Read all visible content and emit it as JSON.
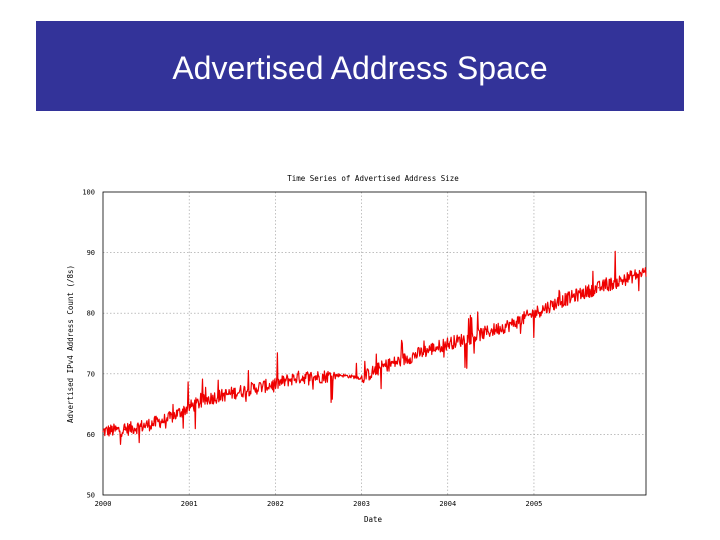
{
  "slide": {
    "title": "Advertised Address Space"
  },
  "chart_data": {
    "type": "line",
    "title": "Time Series of Advertised Address Size",
    "xlabel": "Date",
    "ylabel": "Advertised IPv4 Address Count (/8s)",
    "ytick_labels": [
      "100",
      "90",
      "80",
      "70",
      "60",
      "50"
    ],
    "xtick_labels": [
      "2000",
      "2001",
      "2002",
      "2003",
      "2004",
      "2005"
    ],
    "xlim": [
      2000.0,
      2006.3
    ],
    "ylim": [
      50,
      100
    ],
    "grid": true,
    "series": [
      {
        "color": "#ee0000",
        "x": [
          2000.0,
          2000.25,
          2000.5,
          2000.75,
          2001.0,
          2001.25,
          2001.5,
          2001.75,
          2002.0,
          2002.25,
          2002.5,
          2002.75,
          2003.0,
          2003.25,
          2003.5,
          2003.75,
          2004.0,
          2004.25,
          2004.5,
          2004.75,
          2005.0,
          2005.25,
          2005.5,
          2005.75,
          2006.0,
          2006.3
        ],
        "y": [
          60.5,
          60.8,
          61.5,
          62.5,
          64.5,
          66.0,
          66.8,
          67.6,
          68.3,
          69.4,
          69.5,
          69.8,
          69.3,
          71.2,
          72.4,
          73.8,
          75.0,
          75.9,
          77.1,
          78.2,
          80.0,
          81.6,
          83.0,
          84.2,
          85.3,
          86.9
        ]
      }
    ]
  }
}
